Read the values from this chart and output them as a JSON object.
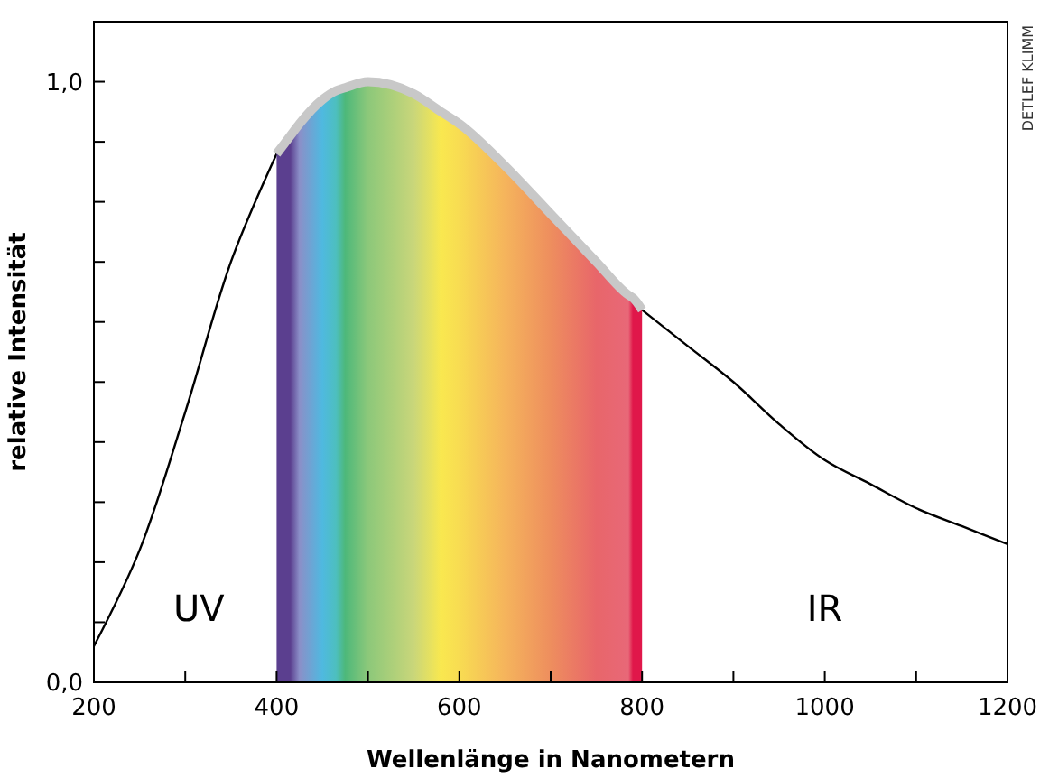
{
  "chart_data": {
    "type": "line",
    "xlabel": "Wellenlänge in Nanometern",
    "ylabel": "relative Intensität",
    "xlim": [
      200,
      1200
    ],
    "ylim": [
      0,
      1.1
    ],
    "xticks": [
      200,
      {
        "value": 300,
        "label": null
      },
      400,
      {
        "value": 500,
        "label": null
      },
      600,
      {
        "value": 700,
        "label": null
      },
      800,
      {
        "value": 900,
        "label": null
      },
      1000,
      {
        "value": 1100,
        "label": null
      },
      1200
    ],
    "yticks": [
      {
        "value": 0,
        "label": "0,0"
      },
      {
        "value": 0.1,
        "label": null
      },
      {
        "value": 0.2,
        "label": null
      },
      {
        "value": 0.3,
        "label": null
      },
      {
        "value": 0.4,
        "label": null
      },
      {
        "value": 0.5,
        "label": null
      },
      {
        "value": 0.6,
        "label": null
      },
      {
        "value": 0.7,
        "label": null
      },
      {
        "value": 0.8,
        "label": null
      },
      {
        "value": 0.9,
        "label": null
      },
      {
        "value": 1,
        "label": "1,0"
      }
    ],
    "grid": false,
    "marker": "none",
    "line_style": "solid",
    "series": [
      {
        "color": "#000000",
        "x": [
          200,
          250,
          300,
          350,
          400,
          450,
          500,
          550,
          600,
          650,
          700,
          750,
          800,
          850,
          900,
          950,
          1000,
          1050,
          1100,
          1150,
          1200
        ],
        "values": [
          0.06,
          0.22,
          0.45,
          0.7,
          0.88,
          null,
          null,
          null,
          null,
          null,
          null,
          null,
          0.62,
          0.56,
          0.5,
          0.43,
          0.37,
          0.33,
          0.29,
          0.26,
          0.23
        ]
      },
      {
        "type": "area",
        "color": "#c8c8c8",
        "x": [
          400,
          415,
          425,
          450,
          465,
          475,
          500,
          550,
          580,
          600,
          650,
          700,
          750,
          785,
          790,
          800
        ],
        "values": [
          0.88,
          0.91,
          0.93,
          0.97,
          0.985,
          0.99,
          1.0,
          0.98,
          0.95,
          0.93,
          0.86,
          0.78,
          0.7,
          0.645,
          0.64,
          0.62
        ],
        "colors": [
          "#5b3f8f",
          "#5b3f8f",
          "#8b8fc8",
          "#4fb9e0",
          "#4dbfbf",
          "#4db87a",
          "#8cc87a",
          "#c9d67a",
          "#f9e84f",
          "#f8dc52",
          "#f5b45c",
          "#ee8e5e",
          "#e8666a",
          "#e86878",
          "#e0174a",
          "#e0174a"
        ]
      }
    ],
    "annotations": [
      "UV",
      "IR",
      "DETLEF KLIMM"
    ]
  }
}
